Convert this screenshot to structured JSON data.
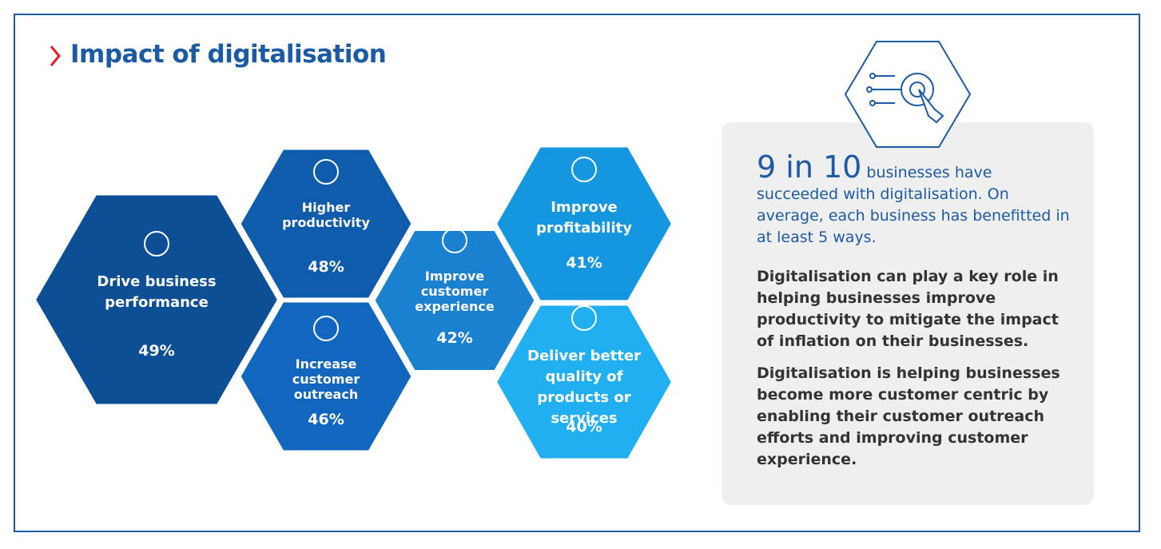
{
  "header": {
    "title": "Impact of digitalisation"
  },
  "hexagons": [
    {
      "label": "Drive business performance",
      "value": "49%"
    },
    {
      "label": "Higher productivity",
      "value": "48%"
    },
    {
      "label": "Increase customer outreach",
      "value": "46%"
    },
    {
      "label": "Improve customer experience",
      "value": "42%"
    },
    {
      "label": "Improve profitability",
      "value": "41%"
    },
    {
      "label": "Deliver better quality of products or services",
      "value": "40%"
    }
  ],
  "panel": {
    "highlight": "9 in 10",
    "lead": "businesses have succeeded with digitalisation. On average, each business has benefitted in at least 5 ways.",
    "paragraphs": [
      "Digitalisation can play a key role in helping businesses improve productivity to mitigate the impact of inflation on their businesses.",
      "Digitalisation is helping businesses become more customer centric by enabling their customer outreach efforts and improving customer experience."
    ]
  }
}
